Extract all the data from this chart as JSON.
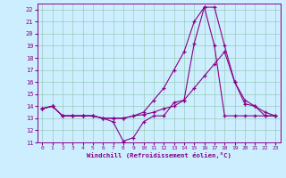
{
  "xlabel": "Windchill (Refroidissement éolien,°C)",
  "xlim": [
    -0.5,
    23.5
  ],
  "ylim": [
    11,
    22.5
  ],
  "xticks": [
    0,
    1,
    2,
    3,
    4,
    5,
    6,
    7,
    8,
    9,
    10,
    11,
    12,
    13,
    14,
    15,
    16,
    17,
    18,
    19,
    20,
    21,
    22,
    23
  ],
  "yticks": [
    11,
    12,
    13,
    14,
    15,
    16,
    17,
    18,
    19,
    20,
    21,
    22
  ],
  "bg_color": "#cceeff",
  "grid_color": "#99ccbb",
  "line_color": "#880088",
  "line1_x": [
    0,
    1,
    2,
    3,
    4,
    5,
    6,
    7,
    8,
    9,
    10,
    11,
    12,
    13,
    14,
    15,
    16,
    17,
    18,
    19,
    20,
    21,
    22,
    23
  ],
  "line1_y": [
    13.8,
    14.0,
    13.2,
    13.2,
    13.2,
    13.2,
    13.0,
    12.7,
    11.1,
    11.4,
    12.7,
    13.2,
    13.2,
    14.3,
    14.5,
    19.2,
    22.2,
    22.2,
    19.0,
    16.0,
    14.2,
    14.0,
    13.2,
    13.2
  ],
  "line2_x": [
    0,
    1,
    2,
    3,
    4,
    5,
    6,
    7,
    8,
    9,
    10,
    11,
    12,
    13,
    14,
    15,
    16,
    17,
    18,
    19,
    20,
    21,
    22,
    23
  ],
  "line2_y": [
    13.8,
    14.0,
    13.2,
    13.2,
    13.2,
    13.2,
    13.0,
    13.0,
    13.0,
    13.2,
    13.3,
    13.5,
    13.8,
    14.0,
    14.5,
    15.5,
    16.5,
    17.5,
    18.5,
    16.0,
    14.5,
    14.0,
    13.5,
    13.2
  ],
  "line3_x": [
    0,
    1,
    2,
    3,
    4,
    5,
    6,
    7,
    8,
    9,
    10,
    11,
    12,
    13,
    14,
    15,
    16,
    17,
    18,
    19,
    20,
    21,
    22,
    23
  ],
  "line3_y": [
    13.8,
    14.0,
    13.2,
    13.2,
    13.2,
    13.2,
    13.0,
    13.0,
    13.0,
    13.2,
    13.5,
    14.5,
    15.5,
    17.0,
    18.5,
    21.0,
    22.2,
    19.0,
    13.2,
    13.2,
    13.2,
    13.2,
    13.2,
    13.2
  ]
}
